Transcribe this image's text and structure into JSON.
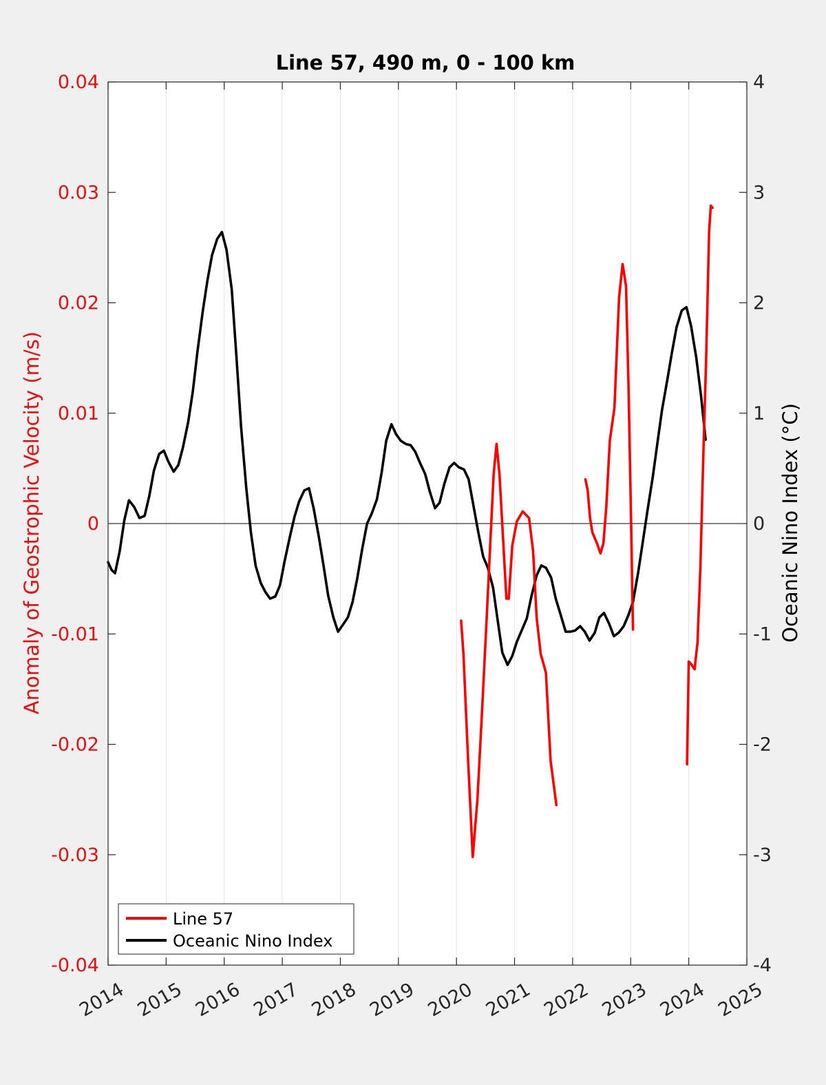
{
  "chart_data": {
    "type": "line",
    "title": "Line 57, 490 m, 0 - 100 km",
    "xlabel": "",
    "ylabel_left": "Anomaly of Geostrophic Velocity (m/s)",
    "ylabel_right": "Oceanic Nino Index (°C)",
    "xlim": [
      2014,
      2025
    ],
    "ylim_left": [
      -0.04,
      0.04
    ],
    "ylim_right": [
      -4,
      4
    ],
    "x_ticks": [
      2014,
      2015,
      2016,
      2017,
      2018,
      2019,
      2020,
      2021,
      2022,
      2023,
      2024,
      2025
    ],
    "x_tick_labels": [
      "2014",
      "2015",
      "2016",
      "2017",
      "2018",
      "2019",
      "2020",
      "2021",
      "2022",
      "2023",
      "2024",
      "2025"
    ],
    "y_left_ticks": [
      -0.04,
      -0.03,
      -0.02,
      -0.01,
      0,
      0.01,
      0.02,
      0.03,
      0.04
    ],
    "y_left_tick_labels": [
      "-0.04",
      "-0.03",
      "-0.02",
      "-0.01",
      "0",
      "0.01",
      "0.02",
      "0.03",
      "0.04"
    ],
    "y_right_ticks": [
      -4,
      -3,
      -2,
      -1,
      0,
      1,
      2,
      3,
      4
    ],
    "y_right_tick_labels": [
      "-4",
      "-3",
      "-2",
      "-1",
      "0",
      "1",
      "2",
      "3",
      "4"
    ],
    "grid": "vertical",
    "zero_line": true,
    "legend_position": "bottom-left",
    "colors": {
      "left_axis": "#e41010",
      "line57": "#ff0000",
      "oni": "#000000",
      "axes": "#262626"
    },
    "series": [
      {
        "name": "Line 57",
        "axis": "left",
        "color": "#ff0000",
        "segments": [
          [
            [
              2020.08,
              -0.0088
            ],
            [
              2020.12,
              -0.0118
            ],
            [
              2020.2,
              -0.0215
            ],
            [
              2020.28,
              -0.0302
            ],
            [
              2020.36,
              -0.025
            ],
            [
              2020.44,
              -0.017
            ],
            [
              2020.52,
              -0.0085
            ],
            [
              2020.58,
              -0.002
            ],
            [
              2020.64,
              0.0045
            ],
            [
              2020.69,
              0.0072
            ],
            [
              2020.74,
              0.0045
            ],
            [
              2020.8,
              -0.0012
            ],
            [
              2020.86,
              -0.0068
            ],
            [
              2020.9,
              -0.0068
            ],
            [
              2020.96,
              -0.002
            ],
            [
              2021.04,
              0.0002
            ],
            [
              2021.14,
              0.0011
            ],
            [
              2021.25,
              0.0005
            ],
            [
              2021.32,
              -0.0025
            ],
            [
              2021.38,
              -0.0085
            ],
            [
              2021.45,
              -0.0118
            ],
            [
              2021.54,
              -0.0135
            ],
            [
              2021.62,
              -0.0215
            ],
            [
              2021.72,
              -0.0255
            ]
          ],
          [
            [
              2022.22,
              0.004
            ],
            [
              2022.26,
              0.003
            ],
            [
              2022.3,
              0.0005
            ],
            [
              2022.34,
              -0.0008
            ],
            [
              2022.42,
              -0.0018
            ],
            [
              2022.48,
              -0.0027
            ],
            [
              2022.53,
              -0.0018
            ],
            [
              2022.58,
              0.0015
            ],
            [
              2022.64,
              0.0075
            ],
            [
              2022.72,
              0.0105
            ],
            [
              2022.76,
              0.0155
            ],
            [
              2022.8,
              0.0205
            ],
            [
              2022.86,
              0.0235
            ],
            [
              2022.92,
              0.0215
            ],
            [
              2022.96,
              0.013
            ],
            [
              2023.0,
              0.002
            ],
            [
              2023.04,
              -0.0096
            ]
          ],
          [
            [
              2023.97,
              -0.0218
            ],
            [
              2024.0,
              -0.0125
            ],
            [
              2024.05,
              -0.0128
            ],
            [
              2024.1,
              -0.0132
            ],
            [
              2024.15,
              -0.0108
            ],
            [
              2024.2,
              -0.004
            ],
            [
              2024.25,
              0.006
            ],
            [
              2024.3,
              0.015
            ],
            [
              2024.35,
              0.0265
            ],
            [
              2024.38,
              0.0288
            ],
            [
              2024.41,
              0.0286
            ]
          ]
        ]
      },
      {
        "name": "Oceanic Nino Index",
        "axis": "right",
        "color": "#000000",
        "points": [
          [
            2014.0,
            -0.35
          ],
          [
            2014.06,
            -0.42
          ],
          [
            2014.12,
            -0.45
          ],
          [
            2014.2,
            -0.25
          ],
          [
            2014.28,
            0.03
          ],
          [
            2014.36,
            0.21
          ],
          [
            2014.45,
            0.15
          ],
          [
            2014.54,
            0.05
          ],
          [
            2014.63,
            0.07
          ],
          [
            2014.71,
            0.25
          ],
          [
            2014.79,
            0.48
          ],
          [
            2014.88,
            0.63
          ],
          [
            2014.96,
            0.66
          ],
          [
            2015.04,
            0.56
          ],
          [
            2015.13,
            0.47
          ],
          [
            2015.21,
            0.53
          ],
          [
            2015.29,
            0.69
          ],
          [
            2015.38,
            0.92
          ],
          [
            2015.46,
            1.2
          ],
          [
            2015.54,
            1.56
          ],
          [
            2015.63,
            1.92
          ],
          [
            2015.71,
            2.2
          ],
          [
            2015.79,
            2.43
          ],
          [
            2015.88,
            2.58
          ],
          [
            2015.96,
            2.64
          ],
          [
            2016.04,
            2.48
          ],
          [
            2016.13,
            2.12
          ],
          [
            2016.21,
            1.52
          ],
          [
            2016.29,
            0.88
          ],
          [
            2016.38,
            0.32
          ],
          [
            2016.46,
            -0.08
          ],
          [
            2016.54,
            -0.38
          ],
          [
            2016.63,
            -0.54
          ],
          [
            2016.71,
            -0.62
          ],
          [
            2016.79,
            -0.68
          ],
          [
            2016.88,
            -0.66
          ],
          [
            2016.96,
            -0.56
          ],
          [
            2017.04,
            -0.34
          ],
          [
            2017.13,
            -0.12
          ],
          [
            2017.21,
            0.06
          ],
          [
            2017.29,
            0.2
          ],
          [
            2017.38,
            0.3
          ],
          [
            2017.46,
            0.32
          ],
          [
            2017.54,
            0.14
          ],
          [
            2017.63,
            -0.12
          ],
          [
            2017.71,
            -0.38
          ],
          [
            2017.79,
            -0.65
          ],
          [
            2017.88,
            -0.85
          ],
          [
            2017.96,
            -0.98
          ],
          [
            2018.04,
            -0.92
          ],
          [
            2018.13,
            -0.85
          ],
          [
            2018.21,
            -0.71
          ],
          [
            2018.29,
            -0.5
          ],
          [
            2018.38,
            -0.22
          ],
          [
            2018.46,
            0.0
          ],
          [
            2018.54,
            0.09
          ],
          [
            2018.63,
            0.22
          ],
          [
            2018.71,
            0.46
          ],
          [
            2018.79,
            0.75
          ],
          [
            2018.88,
            0.9
          ],
          [
            2018.96,
            0.81
          ],
          [
            2019.04,
            0.75
          ],
          [
            2019.13,
            0.72
          ],
          [
            2019.21,
            0.71
          ],
          [
            2019.29,
            0.65
          ],
          [
            2019.38,
            0.54
          ],
          [
            2019.46,
            0.45
          ],
          [
            2019.54,
            0.29
          ],
          [
            2019.63,
            0.14
          ],
          [
            2019.71,
            0.19
          ],
          [
            2019.79,
            0.36
          ],
          [
            2019.88,
            0.51
          ],
          [
            2019.96,
            0.55
          ],
          [
            2020.04,
            0.51
          ],
          [
            2020.13,
            0.49
          ],
          [
            2020.21,
            0.4
          ],
          [
            2020.29,
            0.17
          ],
          [
            2020.38,
            -0.09
          ],
          [
            2020.46,
            -0.3
          ],
          [
            2020.54,
            -0.4
          ],
          [
            2020.63,
            -0.58
          ],
          [
            2020.71,
            -0.88
          ],
          [
            2020.79,
            -1.17
          ],
          [
            2020.88,
            -1.28
          ],
          [
            2020.96,
            -1.2
          ],
          [
            2021.04,
            -1.07
          ],
          [
            2021.13,
            -0.96
          ],
          [
            2021.21,
            -0.86
          ],
          [
            2021.29,
            -0.66
          ],
          [
            2021.38,
            -0.47
          ],
          [
            2021.46,
            -0.38
          ],
          [
            2021.54,
            -0.4
          ],
          [
            2021.63,
            -0.49
          ],
          [
            2021.71,
            -0.68
          ],
          [
            2021.79,
            -0.82
          ],
          [
            2021.88,
            -0.98
          ],
          [
            2021.96,
            -0.98
          ],
          [
            2022.04,
            -0.97
          ],
          [
            2022.13,
            -0.93
          ],
          [
            2022.21,
            -0.98
          ],
          [
            2022.29,
            -1.06
          ],
          [
            2022.38,
            -0.99
          ],
          [
            2022.46,
            -0.85
          ],
          [
            2022.54,
            -0.81
          ],
          [
            2022.63,
            -0.91
          ],
          [
            2022.71,
            -1.02
          ],
          [
            2022.79,
            -0.99
          ],
          [
            2022.88,
            -0.93
          ],
          [
            2022.96,
            -0.83
          ],
          [
            2023.04,
            -0.71
          ],
          [
            2023.13,
            -0.44
          ],
          [
            2023.21,
            -0.16
          ],
          [
            2023.29,
            0.12
          ],
          [
            2023.38,
            0.42
          ],
          [
            2023.46,
            0.73
          ],
          [
            2023.54,
            1.03
          ],
          [
            2023.63,
            1.3
          ],
          [
            2023.71,
            1.55
          ],
          [
            2023.79,
            1.78
          ],
          [
            2023.88,
            1.93
          ],
          [
            2023.96,
            1.96
          ],
          [
            2024.04,
            1.79
          ],
          [
            2024.13,
            1.5
          ],
          [
            2024.21,
            1.16
          ],
          [
            2024.29,
            0.76
          ]
        ]
      }
    ]
  }
}
